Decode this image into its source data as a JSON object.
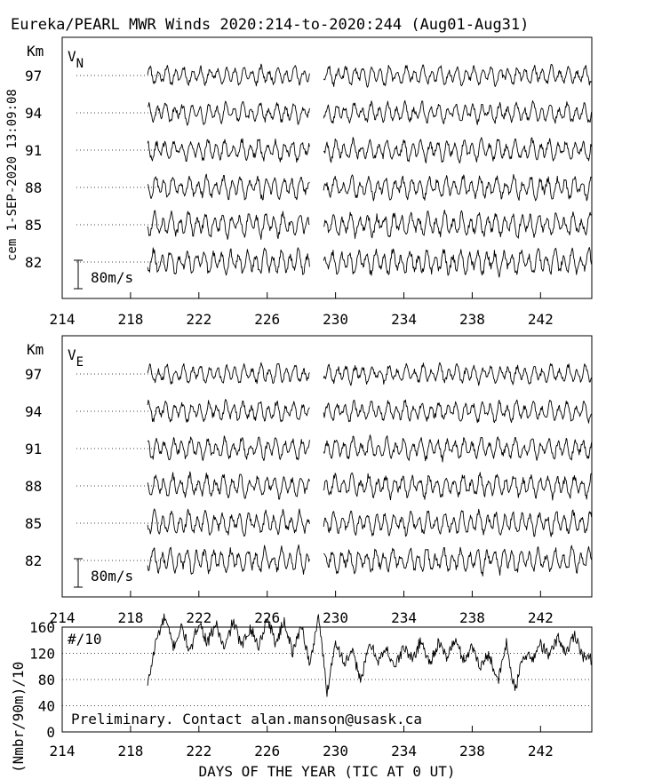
{
  "title": "Eureka/PEARL MWR Winds 2020:214-to-2020:244 (Aug01-Aug31)",
  "side_label": "cem 1-SEP-2020 13:09:08",
  "xlabel": "DAYS OF THE YEAR (TIC AT 0 UT)",
  "note": "Preliminary. Contact alan.manson@usask.ca",
  "chart_data": [
    {
      "type": "line",
      "panel": "VN",
      "panel_label_main": "V",
      "panel_label_sub": "N",
      "y_unit": "Km",
      "xlim": [
        214,
        245
      ],
      "x_ticks": [
        214,
        218,
        222,
        226,
        230,
        234,
        238,
        242
      ],
      "x_tick_labels": [
        "214",
        "218",
        "222",
        "226",
        "230",
        "234",
        "238",
        "242"
      ],
      "heights_km": [
        97,
        94,
        91,
        88,
        85,
        82
      ],
      "height_labels": [
        "97",
        "94",
        "91",
        "88",
        "85",
        "82"
      ],
      "scale_bar_label": "80m/s",
      "data_start_day": 219.0,
      "data_end_day": 245.0,
      "gaps": [
        [
          228.5,
          229.3
        ]
      ],
      "trace_style": "oscillating wind component (approximately semidiurnal), traced per altitude"
    },
    {
      "type": "line",
      "panel": "VE",
      "panel_label_main": "V",
      "panel_label_sub": "E",
      "y_unit": "Km",
      "xlim": [
        214,
        245
      ],
      "x_ticks": [
        214,
        218,
        222,
        226,
        230,
        234,
        238,
        242
      ],
      "x_tick_labels": [
        "214",
        "218",
        "222",
        "226",
        "230",
        "234",
        "238",
        "242"
      ],
      "heights_km": [
        97,
        94,
        91,
        88,
        85,
        82
      ],
      "height_labels": [
        "97",
        "94",
        "91",
        "88",
        "85",
        "82"
      ],
      "scale_bar_label": "80m/s",
      "data_start_day": 219.0,
      "data_end_day": 245.0,
      "gaps": [
        [
          228.5,
          229.3
        ]
      ],
      "trace_style": "oscillating wind component (approximately semidiurnal), traced per altitude"
    },
    {
      "type": "line",
      "panel": "counts",
      "ylabel": "(Nmbr/90m)/10",
      "inner_label": "#/10",
      "xlim": [
        214,
        245
      ],
      "ylim": [
        0,
        160
      ],
      "y_ticks": [
        0,
        40,
        80,
        120,
        160
      ],
      "y_tick_labels": [
        "0",
        "40",
        "80",
        "120",
        "160"
      ],
      "x_ticks": [
        214,
        218,
        222,
        226,
        230,
        234,
        238,
        242
      ],
      "x_tick_labels": [
        "214",
        "218",
        "222",
        "226",
        "230",
        "234",
        "238",
        "242"
      ],
      "series": [
        {
          "x": [
            219.0,
            219.5,
            220.0,
            220.5,
            221.0,
            221.5,
            222.0,
            222.5,
            223.0,
            223.5,
            224.0,
            224.5,
            225.0,
            225.5,
            226.0,
            226.5,
            227.0,
            227.5,
            228.0,
            228.5,
            229.0,
            229.5,
            230.0,
            230.5,
            231.0,
            231.5,
            232.0,
            232.5,
            233.0,
            233.5,
            234.0,
            234.5,
            235.0,
            235.5,
            236.0,
            236.5,
            237.0,
            237.5,
            238.0,
            238.5,
            239.0,
            239.5,
            240.0,
            240.5,
            241.0,
            241.5,
            242.0,
            242.5,
            243.0,
            243.5,
            244.0,
            244.5,
            245.0
          ],
          "y": [
            70,
            140,
            175,
            130,
            160,
            120,
            170,
            135,
            165,
            125,
            170,
            130,
            160,
            130,
            175,
            135,
            170,
            120,
            165,
            100,
            180,
            60,
            140,
            105,
            120,
            80,
            135,
            110,
            125,
            100,
            130,
            110,
            140,
            105,
            135,
            115,
            140,
            110,
            130,
            100,
            120,
            75,
            135,
            60,
            120,
            110,
            135,
            115,
            145,
            120,
            150,
            115,
            110
          ]
        }
      ]
    }
  ]
}
